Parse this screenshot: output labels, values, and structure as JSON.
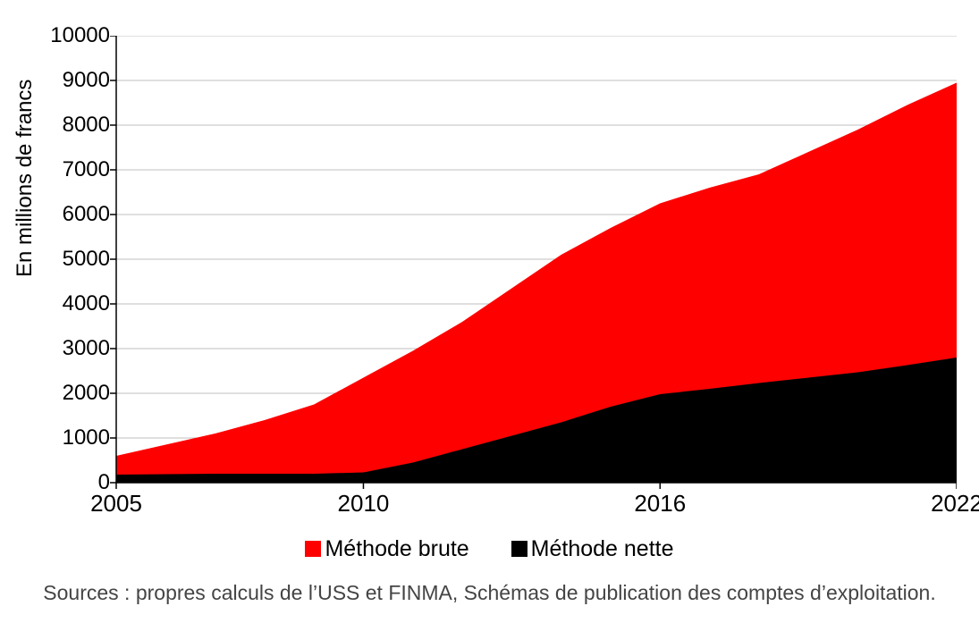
{
  "chart": {
    "type": "area",
    "background_color": "#ffffff",
    "ylabel": "En millions de francs",
    "ylabel_fontsize": 24,
    "ylim": [
      0,
      10000
    ],
    "ytick_step": 1000,
    "yticks": [
      0,
      1000,
      2000,
      3000,
      4000,
      5000,
      6000,
      7000,
      8000,
      9000,
      10000
    ],
    "xticks": [
      {
        "pos": 0,
        "label": "2005"
      },
      {
        "pos": 5,
        "label": "2010"
      },
      {
        "pos": 11,
        "label": "2016"
      },
      {
        "pos": 17,
        "label": "2022"
      }
    ],
    "x_count": 18,
    "series": [
      {
        "name": "Méthode brute",
        "color": "#ff0000",
        "values": [
          600,
          850,
          1100,
          1400,
          1750,
          2350,
          2950,
          3600,
          4350,
          5100,
          5700,
          6250,
          6600,
          6900,
          7400,
          7900,
          8450,
          8950
        ]
      },
      {
        "name": "Méthode nette",
        "color": "#000000",
        "values": [
          180,
          190,
          200,
          200,
          200,
          230,
          450,
          750,
          1050,
          1350,
          1700,
          1980,
          2100,
          2230,
          2350,
          2470,
          2630,
          2800
        ]
      }
    ],
    "axis_color": "#000000",
    "axis_width": 1.5,
    "gridline_color": "#bfbfbf",
    "gridline_width": 1,
    "tick_fontsize": 24,
    "xtick_fontsize": 26
  },
  "legend": {
    "items": [
      {
        "label": "Méthode brute",
        "color": "#ff0000"
      },
      {
        "label": "Méthode nette",
        "color": "#000000"
      }
    ],
    "fontsize": 25
  },
  "source": "Sources : propres calculs de l’USS et FINMA, Schémas de publication des comptes d’exploitation.",
  "source_fontsize": 23,
  "source_color": "#444444"
}
